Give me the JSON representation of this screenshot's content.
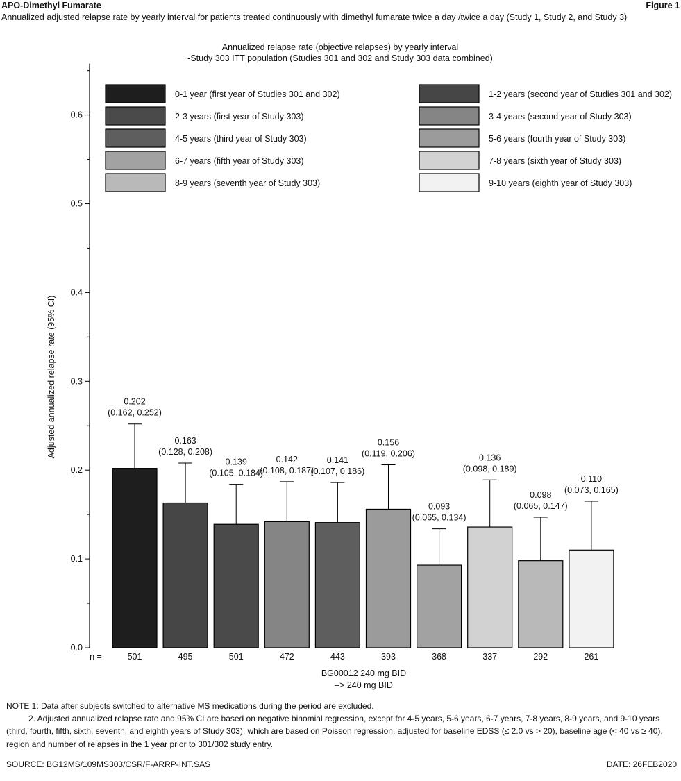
{
  "header": {
    "title": "APO-Dimethyl Fumarate",
    "subtitle": "Annualized adjusted relapse rate by yearly interval for patients treated continuously with dimethyl fumarate twice a day /twice a day (Study 1, Study 2, and Study 3)",
    "figure_label": "Figure 1"
  },
  "chart_data": {
    "type": "bar",
    "title": "Annualized relapse rate (objective relapses) by yearly interval",
    "subtitle": "-Study 303 ITT population (Studies 301 and 302 and Study 303 data combined)",
    "ylabel": "Adjusted annualized relapse rate (95% CI)",
    "xlabel_lines": [
      "BG00012 240 mg BID",
      "–> 240 mg BID"
    ],
    "ylim": [
      0,
      0.65
    ],
    "yticks": [
      0.0,
      0.1,
      0.2,
      0.3,
      0.4,
      0.5,
      0.6
    ],
    "ytick_labels": [
      "0.0",
      "0.1",
      "0.2",
      "0.3",
      "0.4",
      "0.5",
      "0.6"
    ],
    "n_label": "n =",
    "grid": false,
    "legend_position": "top",
    "series": [
      {
        "name": "0-1 year (first year of Studies 301 and 302)",
        "value": 0.202,
        "ci": [
          0.162,
          0.252
        ],
        "value_label": "0.202",
        "ci_label": "(0.162, 0.252)",
        "n": "501",
        "color": "#1e1e1e"
      },
      {
        "name": "1-2 years (second year of Studies 301 and 302)",
        "value": 0.163,
        "ci": [
          0.128,
          0.208
        ],
        "value_label": "0.163",
        "ci_label": "(0.128, 0.208)",
        "n": "495",
        "color": "#464646"
      },
      {
        "name": "2-3 years (first year of Study 303)",
        "value": 0.139,
        "ci": [
          0.105,
          0.184
        ],
        "value_label": "0.139",
        "ci_label": "(0.105, 0.184)",
        "n": "501",
        "color": "#4a4a4a"
      },
      {
        "name": "3-4 years (second year of Study 303)",
        "value": 0.142,
        "ci": [
          0.108,
          0.187
        ],
        "value_label": "0.142",
        "ci_label": "(0.108, 0.187)",
        "n": "472",
        "color": "#858585"
      },
      {
        "name": "4-5 years (third year of Study 303)",
        "value": 0.141,
        "ci": [
          0.107,
          0.186
        ],
        "value_label": "0.141",
        "ci_label": "(0.107, 0.186)",
        "n": "443",
        "color": "#5e5e5e"
      },
      {
        "name": "5-6 years (fourth year of Study 303)",
        "value": 0.156,
        "ci": [
          0.119,
          0.206
        ],
        "value_label": "0.156",
        "ci_label": "(0.119, 0.206)",
        "n": "393",
        "color": "#9b9b9b"
      },
      {
        "name": "6-7 years (fifth year of Study 303)",
        "value": 0.093,
        "ci": [
          0.065,
          0.134
        ],
        "value_label": "0.093",
        "ci_label": "(0.065, 0.134)",
        "n": "368",
        "color": "#a2a2a2"
      },
      {
        "name": "7-8 years (sixth year of Study 303)",
        "value": 0.136,
        "ci": [
          0.098,
          0.189
        ],
        "value_label": "0.136",
        "ci_label": "(0.098, 0.189)",
        "n": "337",
        "color": "#d2d2d2"
      },
      {
        "name": "8-9 years (seventh year of Study 303)",
        "value": 0.098,
        "ci": [
          0.065,
          0.147
        ],
        "value_label": "0.098",
        "ci_label": "(0.065, 0.147)",
        "n": "292",
        "color": "#b9b9b9"
      },
      {
        "name": "9-10 years (eighth year of Study 303)",
        "value": 0.11,
        "ci": [
          0.073,
          0.165
        ],
        "value_label": "0.110",
        "ci_label": "(0.073, 0.165)",
        "n": "261",
        "color": "#f2f2f2"
      }
    ]
  },
  "notes": {
    "note1": "NOTE 1: Data after subjects switched to alternative MS medications during the period are excluded.",
    "note2": "2. Adjusted annualized relapse rate and 95% CI are based on negative binomial regression, except for 4-5 years, 5-6 years, 6-7 years, 7-8 years, 8-9 years, and 9-10 years (third, fourth, fifth, sixth, seventh, and eighth years of Study 303), which are based on Poisson regression, adjusted for baseline EDSS (≤ 2.0 vs > 20), baseline age (< 40 vs ≥ 40), region and number of relapses in the 1 year prior to 301/302 study entry."
  },
  "footer": {
    "source": "SOURCE: BG12MS/109MS303/CSR/F-ARRP-INT.SAS",
    "date": "DATE: 26FEB2020"
  }
}
